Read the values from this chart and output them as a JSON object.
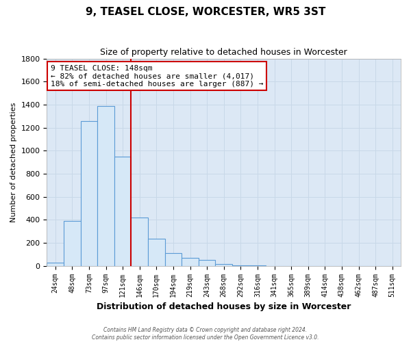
{
  "title": "9, TEASEL CLOSE, WORCESTER, WR5 3ST",
  "subtitle": "Size of property relative to detached houses in Worcester",
  "xlabel": "Distribution of detached houses by size in Worcester",
  "ylabel": "Number of detached properties",
  "footer_line1": "Contains HM Land Registry data © Crown copyright and database right 2024.",
  "footer_line2": "Contains public sector information licensed under the Open Government Licence v3.0.",
  "bar_labels": [
    "24sqm",
    "48sqm",
    "73sqm",
    "97sqm",
    "121sqm",
    "146sqm",
    "170sqm",
    "194sqm",
    "219sqm",
    "243sqm",
    "268sqm",
    "292sqm",
    "316sqm",
    "341sqm",
    "365sqm",
    "389sqm",
    "414sqm",
    "438sqm",
    "462sqm",
    "487sqm",
    "511sqm"
  ],
  "bar_values": [
    25,
    390,
    1255,
    1390,
    950,
    420,
    235,
    110,
    70,
    50,
    15,
    5,
    2,
    1,
    0,
    0,
    0,
    0,
    0,
    0,
    0
  ],
  "bar_color": "#d6e8f7",
  "bar_edgecolor": "#5b9bd5",
  "grid_color": "#c8d8e8",
  "background_color": "#dce8f5",
  "fig_background": "#ffffff",
  "vline_color": "#cc0000",
  "vline_x_index": 5,
  "annotation_title": "9 TEASEL CLOSE: 148sqm",
  "annotation_line1": "← 82% of detached houses are smaller (4,017)",
  "annotation_line2": "18% of semi-detached houses are larger (887) →",
  "annotation_box_facecolor": "#ffffff",
  "annotation_box_edgecolor": "#cc0000",
  "ylim": [
    0,
    1800
  ],
  "yticks": [
    0,
    200,
    400,
    600,
    800,
    1000,
    1200,
    1400,
    1600,
    1800
  ]
}
